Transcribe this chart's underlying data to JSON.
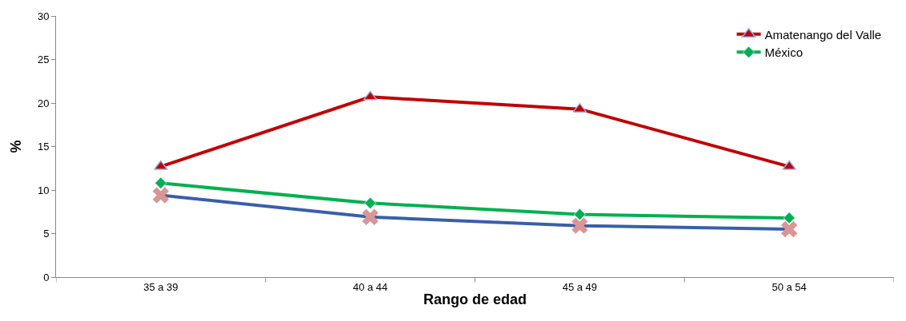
{
  "chart_data": {
    "type": "line",
    "xlabel": "Rango de edad",
    "ylabel": "%",
    "categories": [
      "35 a 39",
      "40 a 44",
      "45 a 49",
      "50 a 54"
    ],
    "series": [
      {
        "name": "Amatenango del Valle",
        "color": "#c00000",
        "marker": "triangle",
        "values": [
          12.7,
          20.7,
          19.3,
          12.7
        ]
      },
      {
        "name": "México",
        "color": "#00b050",
        "marker": "diamond",
        "values": [
          10.8,
          8.5,
          7.2,
          6.8
        ]
      },
      {
        "color": "#3a5fa8",
        "marker": "cross",
        "values": [
          9.4,
          6.9,
          5.9,
          5.5
        ]
      }
    ],
    "ylim": [
      0,
      30
    ],
    "yticks": [
      0,
      5,
      10,
      15,
      20,
      25,
      30
    ],
    "legend": "top right",
    "line_style": "solid"
  }
}
